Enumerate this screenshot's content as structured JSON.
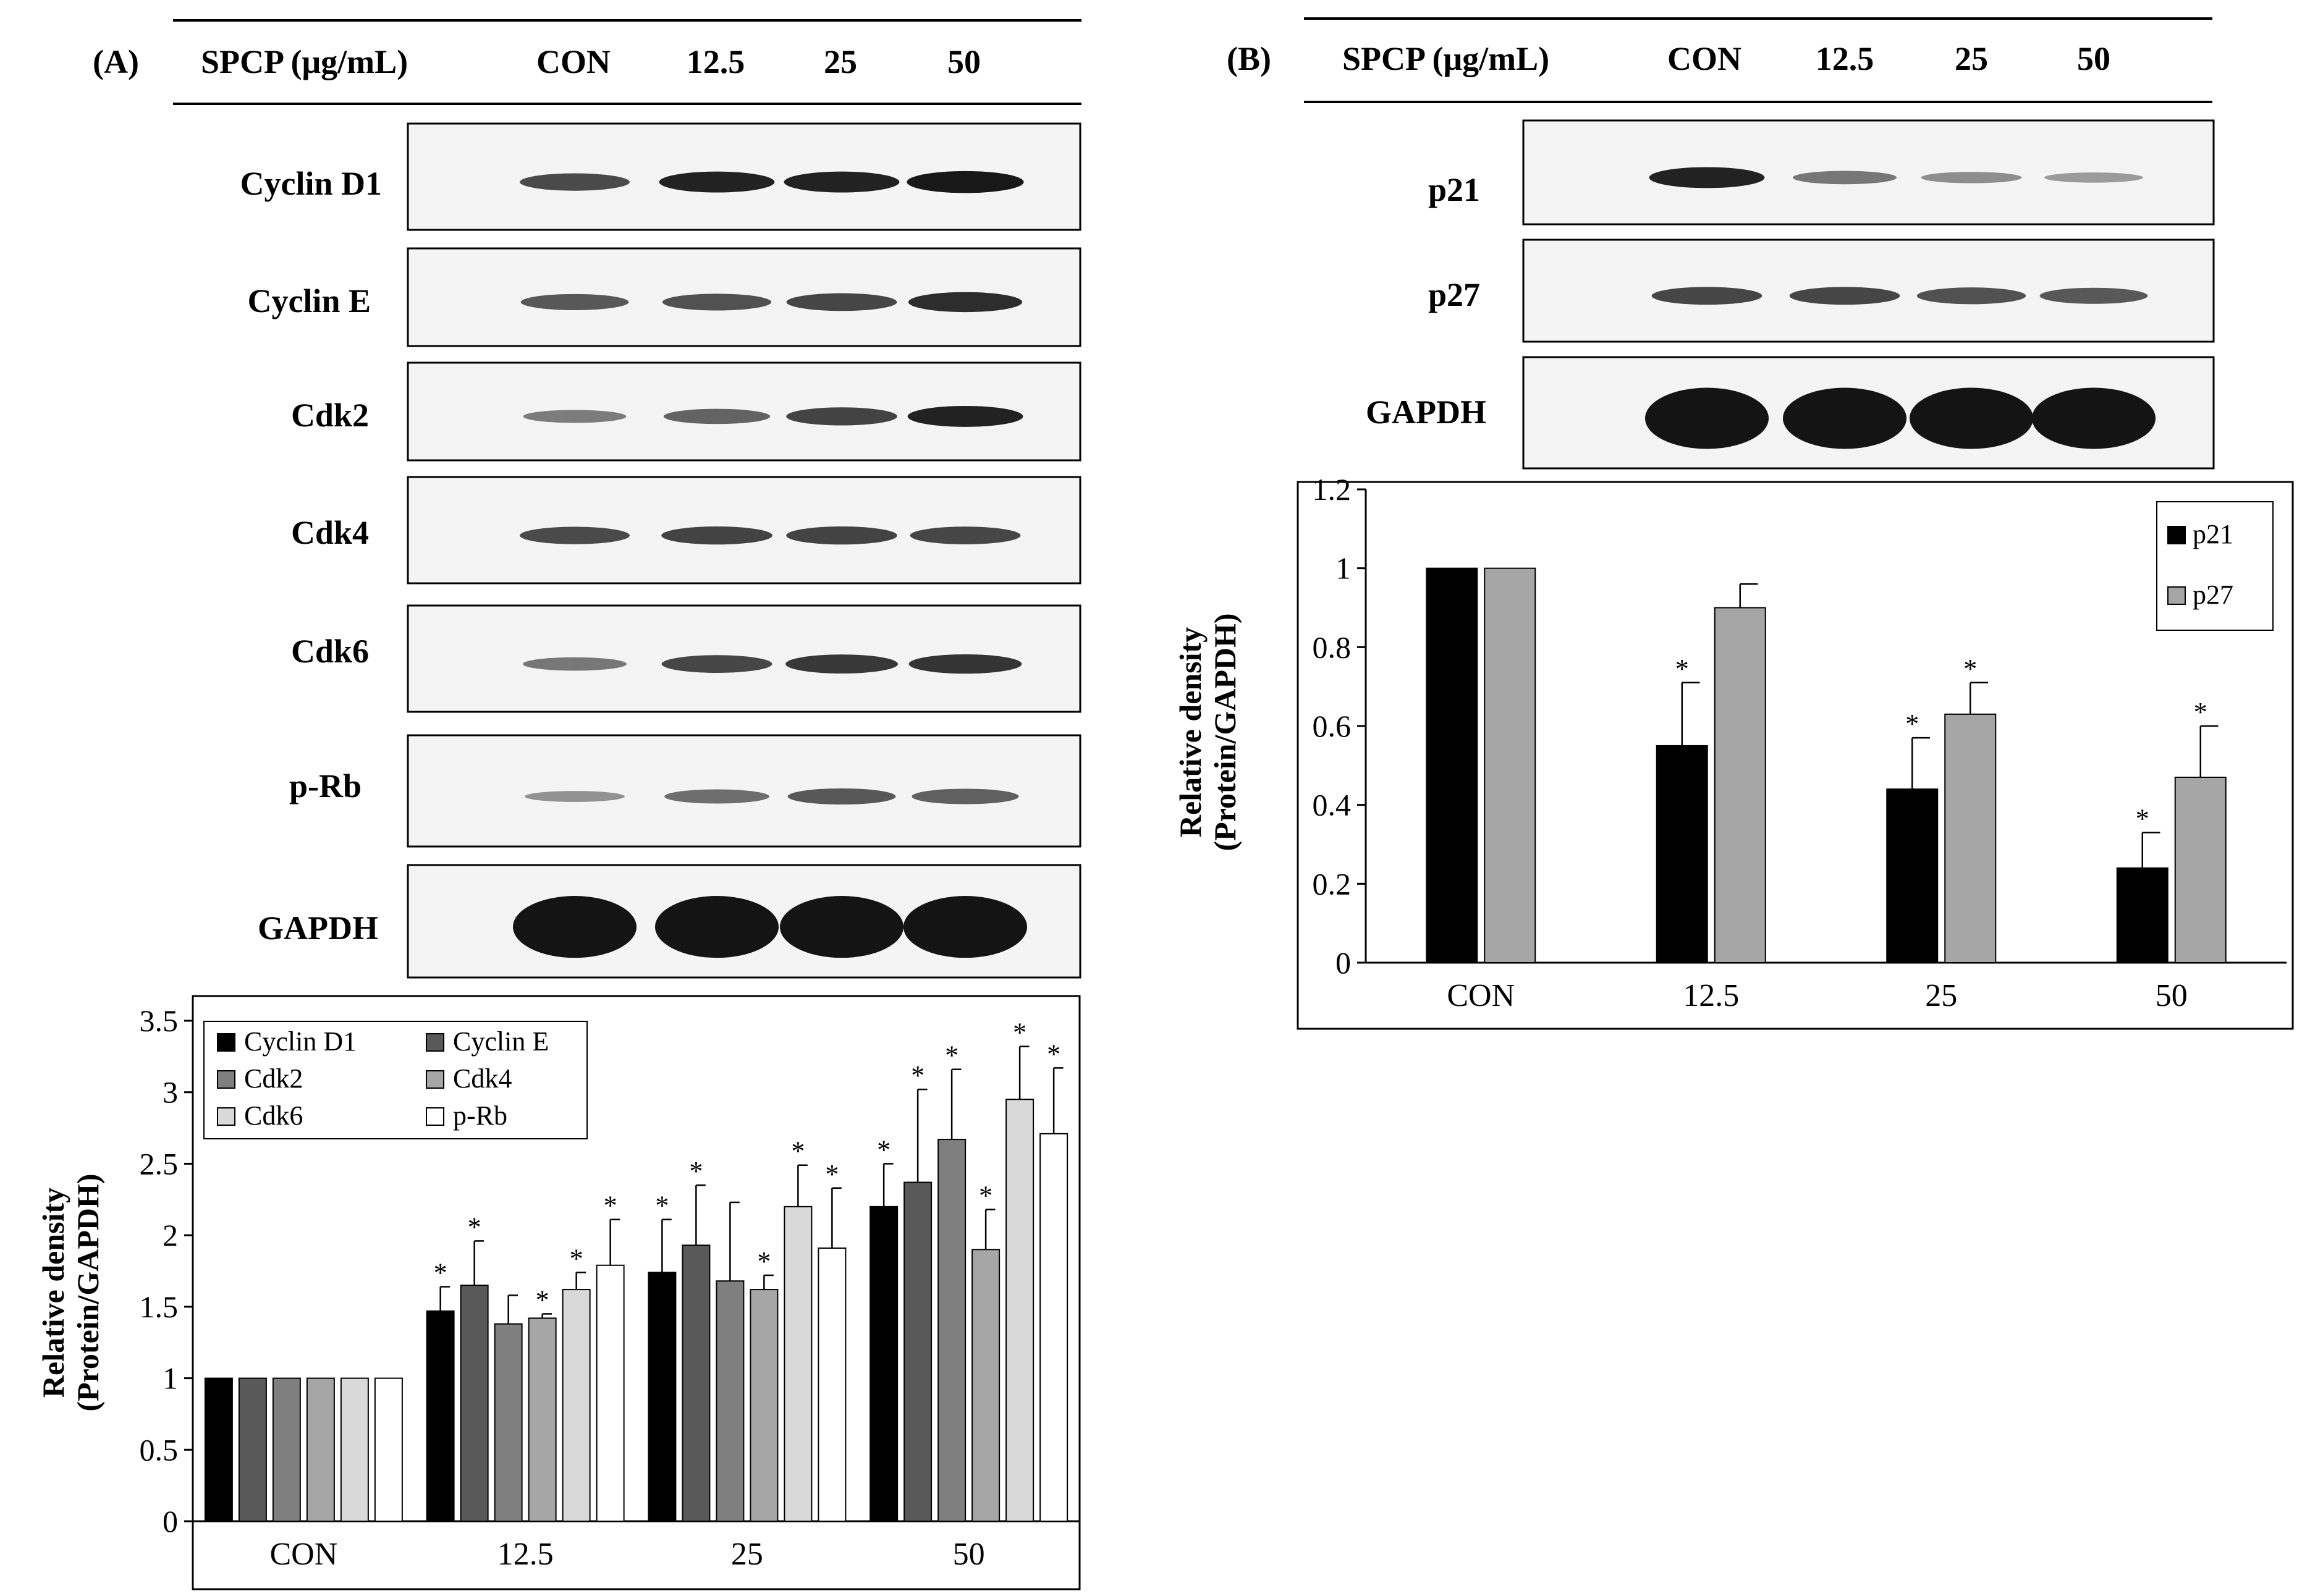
{
  "panels": [
    {
      "letter": "(A)",
      "header": {
        "condition_label": "SPCP (μg/mL)",
        "lanes": [
          "CON",
          "12.5",
          "25",
          "50"
        ]
      },
      "blots": [
        {
          "label": "Cyclin D1",
          "bands": [
            0.7,
            0.92,
            0.92,
            0.98
          ]
        },
        {
          "label": "Cyclin E",
          "bands": [
            0.62,
            0.66,
            0.72,
            0.86
          ]
        },
        {
          "label": "Cdk2",
          "bands": [
            0.42,
            0.56,
            0.74,
            0.92
          ]
        },
        {
          "label": "Cdk4",
          "bands": [
            0.7,
            0.74,
            0.74,
            0.72
          ]
        },
        {
          "label": "Cdk6",
          "bands": [
            0.45,
            0.72,
            0.8,
            0.82
          ]
        },
        {
          "label": "p-Rb",
          "bands": [
            0.3,
            0.5,
            0.62,
            0.58
          ]
        },
        {
          "label": "GAPDH",
          "bands": [
            1.0,
            1.0,
            1.0,
            1.0
          ]
        }
      ]
    },
    {
      "letter": "(B)",
      "header": {
        "condition_label": "SPCP (μg/mL)",
        "lanes": [
          "CON",
          "12.5",
          "25",
          "50"
        ]
      },
      "blots": [
        {
          "label": "p21",
          "bands": [
            0.92,
            0.45,
            0.32,
            0.25
          ]
        },
        {
          "label": "p27",
          "bands": [
            0.72,
            0.72,
            0.66,
            0.62
          ]
        },
        {
          "label": "GAPDH",
          "bands": [
            1.0,
            1.0,
            1.0,
            1.0
          ]
        }
      ]
    }
  ],
  "chart_data": [
    {
      "type": "bar",
      "panel": "(A)",
      "categories": [
        "CON",
        "12.5",
        "25",
        "50"
      ],
      "ylabel": "Relative density (Protein/GAPDH)",
      "ylabel_lines": [
        "Relative density",
        "(Protein/GAPDH)"
      ],
      "ylim": [
        0,
        3.5
      ],
      "yticks": [
        "0",
        "0.5",
        "1",
        "1.5",
        "2",
        "2.5",
        "3",
        "3.5"
      ],
      "legend_position": "top-left",
      "series": [
        {
          "name": "Cyclin D1",
          "color": "#000000",
          "values": [
            1.0,
            1.47,
            1.74,
            2.2
          ],
          "errors": [
            0.0,
            0.17,
            0.37,
            0.3
          ],
          "significant": [
            false,
            true,
            true,
            true
          ]
        },
        {
          "name": "Cyclin E",
          "color": "#595959",
          "values": [
            1.0,
            1.65,
            1.93,
            2.37
          ],
          "errors": [
            0.0,
            0.31,
            0.42,
            0.65
          ],
          "significant": [
            false,
            true,
            true,
            true
          ]
        },
        {
          "name": "Cdk2",
          "color": "#7f7f7f",
          "values": [
            1.0,
            1.38,
            1.68,
            2.67
          ],
          "errors": [
            0.0,
            0.2,
            0.55,
            0.49
          ],
          "significant": [
            false,
            false,
            false,
            true
          ]
        },
        {
          "name": "Cdk4",
          "color": "#a6a6a6",
          "values": [
            1.0,
            1.42,
            1.62,
            1.9
          ],
          "errors": [
            0.0,
            0.03,
            0.1,
            0.28
          ],
          "significant": [
            false,
            true,
            true,
            true
          ]
        },
        {
          "name": "Cdk6",
          "color": "#d9d9d9",
          "values": [
            1.0,
            1.62,
            2.2,
            2.95
          ],
          "errors": [
            0.0,
            0.12,
            0.29,
            0.37
          ],
          "significant": [
            false,
            true,
            true,
            true
          ]
        },
        {
          "name": "p-Rb",
          "color": "#ffffff",
          "values": [
            1.0,
            1.79,
            1.91,
            2.71
          ],
          "errors": [
            0.0,
            0.32,
            0.42,
            0.46
          ],
          "significant": [
            false,
            true,
            true,
            true
          ]
        }
      ]
    },
    {
      "type": "bar",
      "panel": "(B)",
      "categories": [
        "CON",
        "12.5",
        "25",
        "50"
      ],
      "ylabel": "Relative density (Protein/GAPDH)",
      "ylabel_lines": [
        "Relative density",
        "(Protein/GAPDH)"
      ],
      "ylim": [
        0,
        1.2
      ],
      "yticks": [
        "0",
        "0.2",
        "0.4",
        "0.6",
        "0.8",
        "1",
        "1.2"
      ],
      "legend_position": "top-right",
      "series": [
        {
          "name": "p21",
          "color": "#000000",
          "values": [
            1.0,
            0.55,
            0.44,
            0.24
          ],
          "errors": [
            0.0,
            0.16,
            0.13,
            0.09
          ],
          "significant": [
            false,
            true,
            true,
            true
          ]
        },
        {
          "name": "p27",
          "color": "#a6a6a6",
          "values": [
            1.0,
            0.9,
            0.63,
            0.47
          ],
          "errors": [
            0.0,
            0.06,
            0.08,
            0.13
          ],
          "significant": [
            false,
            false,
            true,
            true
          ]
        }
      ]
    }
  ]
}
